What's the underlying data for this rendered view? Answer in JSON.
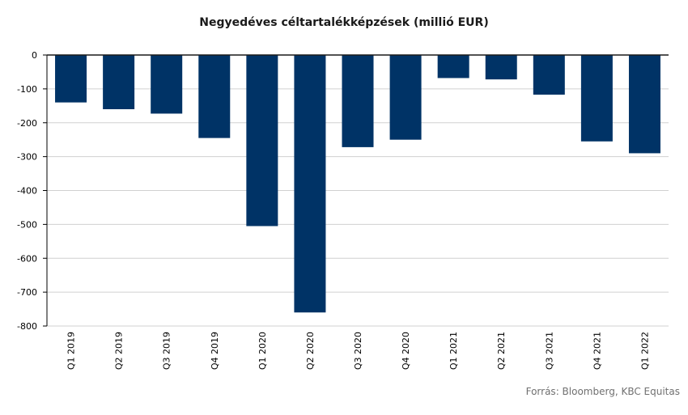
{
  "chart_data": {
    "type": "bar",
    "title": "Negyedéves céltartalékképzések (millió EUR)",
    "categories": [
      "Q1 2019",
      "Q2 2019",
      "Q3 2019",
      "Q4 2019",
      "Q1 2020",
      "Q2 2020",
      "Q3 2020",
      "Q4 2020",
      "Q1 2021",
      "Q2 2021",
      "Q3 2021",
      "Q4 2021",
      "Q1 2022"
    ],
    "values": [
      -140,
      -160,
      -173,
      -245,
      -505,
      -760,
      -272,
      -250,
      -68,
      -72,
      -117,
      -255,
      -290
    ],
    "ylim": [
      -800,
      0
    ],
    "yticks": [
      0,
      -100,
      -200,
      -300,
      -400,
      -500,
      -600,
      -700,
      -800
    ],
    "grid": true,
    "bar_color": "#003366",
    "xlabel": "",
    "ylabel": ""
  },
  "source": "Forrás: Bloomberg,  KBC Equitas"
}
